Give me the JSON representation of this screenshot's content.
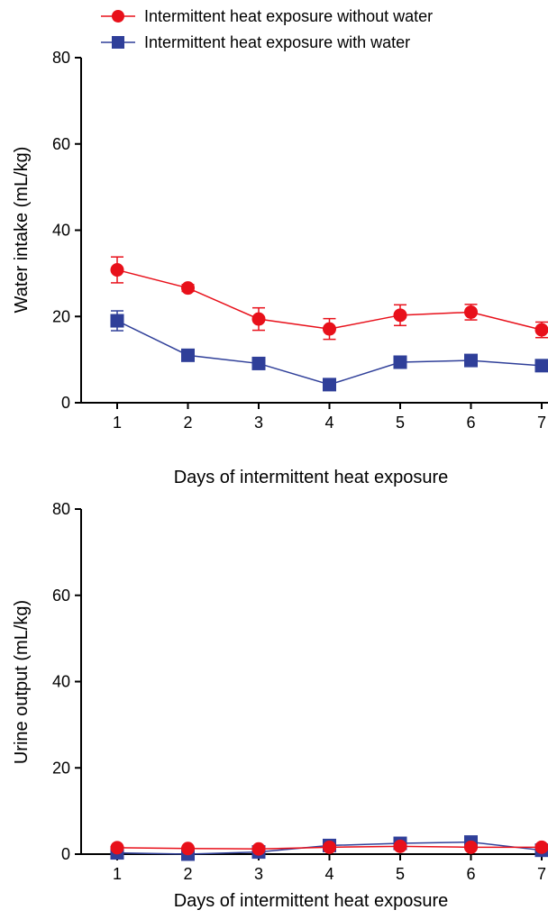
{
  "legend": {
    "items": [
      {
        "label": "Intermittent heat exposure without water",
        "marker": "circle",
        "color": "#e8101a"
      },
      {
        "label": "Intermittent heat exposure with water",
        "marker": "square",
        "color": "#2f3f99"
      }
    ]
  },
  "chart_data": [
    {
      "type": "line",
      "title": "",
      "xlabel": "Days of intermittent heat exposure",
      "ylabel": "Water intake (mL/kg)",
      "x": [
        1,
        2,
        3,
        4,
        5,
        6,
        7
      ],
      "x_tick_labels": [
        "1",
        "2",
        "3",
        "4",
        "5",
        "6",
        "7"
      ],
      "ylim": [
        0,
        80
      ],
      "y_ticks": [
        0,
        20,
        40,
        60,
        80
      ],
      "grid": false,
      "legend_position": "top",
      "series": [
        {
          "name": "Intermittent heat exposure without water",
          "marker": "circle",
          "color": "#e8101a",
          "values": [
            30.8,
            26.6,
            19.4,
            17.1,
            20.3,
            21.0,
            16.9
          ],
          "error": [
            3.0,
            0.8,
            2.6,
            2.4,
            2.4,
            1.8,
            1.8
          ]
        },
        {
          "name": "Intermittent heat exposure with water",
          "marker": "square",
          "color": "#2f3f99",
          "values": [
            19.0,
            11.0,
            9.1,
            4.2,
            9.4,
            9.8,
            8.6
          ],
          "error": [
            2.3,
            0.8,
            1.0,
            0.6,
            0.7,
            0.7,
            0.7
          ]
        }
      ]
    },
    {
      "type": "line",
      "title": "",
      "xlabel": "Days of intermittent heat exposure",
      "ylabel": "Urine output (mL/kg)",
      "x": [
        1,
        2,
        3,
        4,
        5,
        6,
        7
      ],
      "x_tick_labels": [
        "1",
        "2",
        "3",
        "4",
        "5",
        "6",
        "7"
      ],
      "ylim": [
        0,
        80
      ],
      "y_ticks": [
        0,
        20,
        40,
        60,
        80
      ],
      "grid": false,
      "series": [
        {
          "name": "Intermittent heat exposure without water",
          "marker": "circle",
          "color": "#e8101a",
          "values": [
            1.5,
            1.3,
            1.2,
            1.6,
            1.8,
            1.6,
            1.6
          ],
          "error": [
            0.2,
            0.2,
            0.2,
            0.2,
            0.3,
            0.3,
            0.2
          ]
        },
        {
          "name": "Intermittent heat exposure with water",
          "marker": "square",
          "color": "#2f3f99",
          "values": [
            0.3,
            0.0,
            0.5,
            2.0,
            2.5,
            2.8,
            0.9
          ],
          "error": [
            0.2,
            0.1,
            0.2,
            0.3,
            0.3,
            0.3,
            0.2
          ]
        }
      ]
    }
  ]
}
